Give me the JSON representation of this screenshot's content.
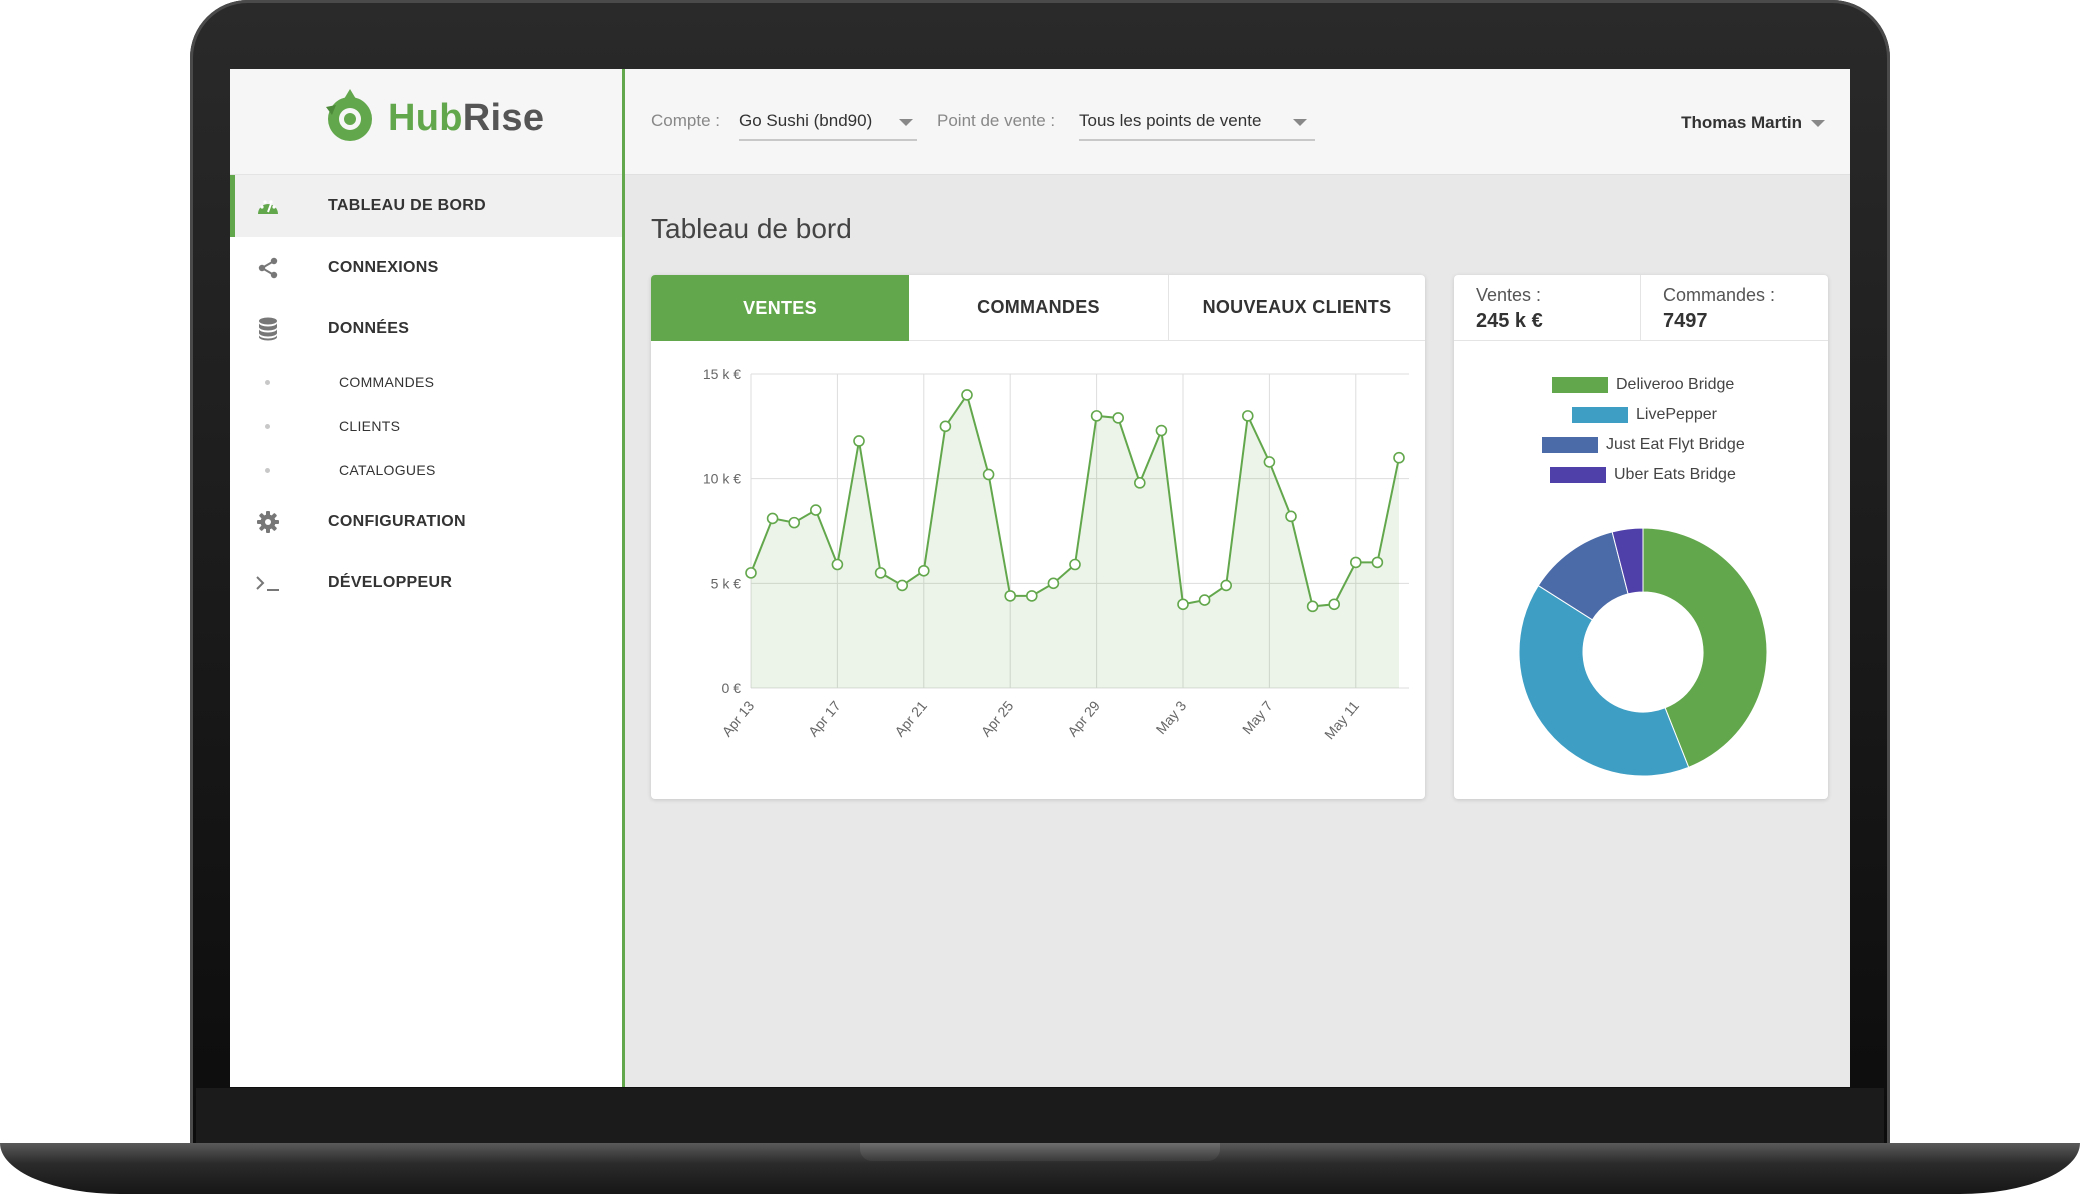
{
  "brand": {
    "name_part1": "Hub",
    "name_part2": "Rise",
    "accent": "#63a74c"
  },
  "sidebar": {
    "items": [
      {
        "label": "TABLEAU DE BORD",
        "icon": "dashboard-icon",
        "active": true
      },
      {
        "label": "CONNEXIONS",
        "icon": "share-icon"
      },
      {
        "label": "DONNÉES",
        "icon": "database-icon"
      },
      {
        "label": "CONFIGURATION",
        "icon": "gear-icon"
      },
      {
        "label": "DÉVELOPPEUR",
        "icon": "terminal-icon"
      }
    ],
    "subitems": [
      {
        "label": "COMMANDES"
      },
      {
        "label": "CLIENTS"
      },
      {
        "label": "CATALOGUES"
      }
    ]
  },
  "topbar": {
    "account_label": "Compte :",
    "account_value": "Go Sushi (bnd90)",
    "location_label": "Point de vente :",
    "location_value": "Tous les points de vente",
    "user_name": "Thomas Martin"
  },
  "main": {
    "title": "Tableau de bord",
    "tabs": [
      {
        "label": "VENTES",
        "active": true
      },
      {
        "label": "COMMANDES"
      },
      {
        "label": "NOUVEAUX CLIENTS"
      }
    ],
    "stats": [
      {
        "label": "Ventes :",
        "value": "245 k €"
      },
      {
        "label": "Commandes :",
        "value": "7497"
      }
    ]
  },
  "chart_data": [
    {
      "type": "area",
      "title": "",
      "xlabel": "",
      "ylabel": "",
      "ylim": [
        0,
        15
      ],
      "y_ticks": [
        "0 €",
        "5 k €",
        "10 k €",
        "15 k €"
      ],
      "y_tick_values": [
        0,
        5,
        10,
        15
      ],
      "x_ticks": [
        "Apr 13",
        "Apr 17",
        "Apr 21",
        "Apr 25",
        "Apr 29",
        "May 3",
        "May 7",
        "May 11"
      ],
      "grid": true,
      "color": "#63a74c",
      "x": [
        "Apr 13",
        "Apr 14",
        "Apr 15",
        "Apr 16",
        "Apr 17",
        "Apr 18",
        "Apr 19",
        "Apr 20",
        "Apr 21",
        "Apr 22",
        "Apr 23",
        "Apr 24",
        "Apr 25",
        "Apr 26",
        "Apr 27",
        "Apr 28",
        "Apr 29",
        "Apr 30",
        "May 1",
        "May 2",
        "May 3",
        "May 4",
        "May 5",
        "May 6",
        "May 7",
        "May 8",
        "May 9",
        "May 10",
        "May 11",
        "May 12",
        "May 13"
      ],
      "values": [
        5.5,
        8.1,
        7.9,
        8.5,
        5.9,
        11.8,
        5.5,
        4.9,
        5.6,
        12.5,
        14.0,
        10.2,
        4.4,
        4.4,
        5.0,
        5.9,
        13.0,
        12.9,
        9.8,
        12.3,
        4.0,
        4.2,
        4.9,
        13.0,
        10.8,
        8.2,
        3.9,
        4.0,
        6.0,
        6.0,
        11.0
      ]
    },
    {
      "type": "pie",
      "title": "",
      "legend_position": "top",
      "categories": [
        "Deliveroo Bridge",
        "LivePepper",
        "Just Eat Flyt Bridge",
        "Uber Eats Bridge"
      ],
      "values": [
        44,
        40,
        12,
        4
      ],
      "colors": [
        "#63a74c",
        "#3e9ec4",
        "#4a6aa8",
        "#4f3fa8"
      ]
    }
  ]
}
